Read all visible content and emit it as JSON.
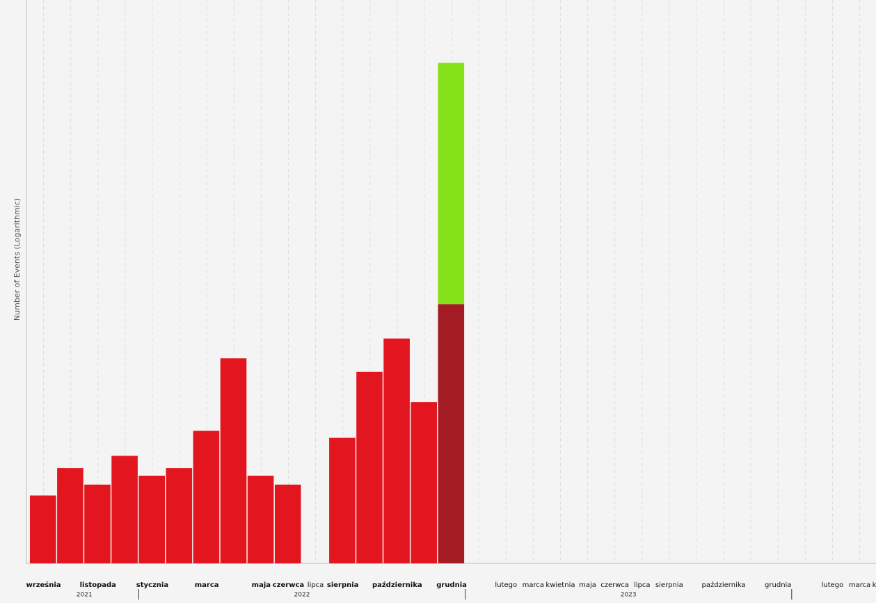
{
  "chart_data": {
    "type": "bar",
    "y_label": "Number of Events (Logarithmic)",
    "log_scale": true,
    "ylim": [
      1,
      100000
    ],
    "grid": true,
    "x": [
      "2021-09",
      "2021-10",
      "2021-11",
      "2021-12",
      "2022-01",
      "2022-02",
      "2022-03",
      "2022-04",
      "2022-05",
      "2022-06",
      "2022-07",
      "2022-08",
      "2022-09",
      "2022-10",
      "2022-11",
      "2022-12",
      "2023-01",
      "2023-02",
      "2023-03",
      "2023-04",
      "2023-05",
      "2023-06",
      "2023-07",
      "2023-08",
      "2023-09",
      "2023-10",
      "2023-11",
      "2023-12",
      "2024-01",
      "2024-02",
      "2024-03",
      "2024-04"
    ],
    "categories": [
      "września",
      null,
      "listopada",
      null,
      "stycznia",
      null,
      "marca",
      null,
      "maja",
      "czerwca",
      "lipca",
      "sierpnia",
      null,
      "października",
      null,
      "grudnia",
      null,
      "lutego",
      "marca",
      "kwietnia",
      "maja",
      "czerwca",
      "lipca",
      "sierpnia",
      null,
      "października",
      null,
      "grudnia",
      null,
      "lutego",
      "marca",
      "kwietnia"
    ],
    "years": [
      "2021",
      "2022",
      "2023"
    ],
    "series": [
      {
        "color": "#e3161f",
        "highlight_color": "#a31c23",
        "highlight": "2022-12",
        "values": [
          4,
          7,
          5,
          9,
          6,
          7,
          15,
          66,
          6,
          5,
          null,
          13,
          50,
          99,
          27,
          200,
          null,
          null,
          null,
          null,
          null,
          null,
          null,
          null,
          null,
          null,
          null,
          null,
          null,
          null,
          null,
          null
        ]
      },
      {
        "color": "#84e118",
        "values": [
          null,
          null,
          null,
          null,
          null,
          null,
          null,
          null,
          null,
          null,
          null,
          null,
          null,
          null,
          null,
          27500,
          null,
          null,
          null,
          null,
          null,
          null,
          null,
          null,
          null,
          null,
          null,
          null,
          null,
          null,
          null,
          null
        ]
      }
    ]
  }
}
